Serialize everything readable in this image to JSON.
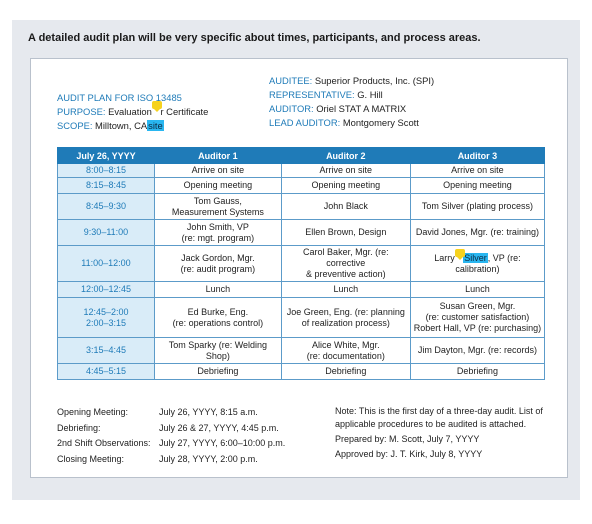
{
  "caption": "A detailed audit plan will be very specific about times, participants, and process areas.",
  "header": {
    "plan_title": "AUDIT PLAN FOR ISO 13485",
    "purpose_label": "PURPOSE: ",
    "purpose_value_a": "Evaluation ",
    "purpose_value_b": "r Certificate",
    "scope_label": "SCOPE: ",
    "scope_value": "Milltown, CA",
    "scope_highlight": "site",
    "auditee_label": "AUDITEE: ",
    "auditee_value": "Superior Products, Inc. (SPI)",
    "representative_label": "REPRESENTATIVE: ",
    "representative_value": "G. Hill",
    "auditor_label": "AUDITOR: ",
    "auditor_value": "Oriel STAT A MATRIX",
    "lead_auditor_label": "LEAD AUDITOR: ",
    "lead_auditor_value": "Montgomery Scott"
  },
  "table": {
    "headers": [
      "July 26, YYYY",
      "Auditor 1",
      "Auditor 2",
      "Auditor 3"
    ],
    "rows": [
      {
        "time": "8:00–8:15",
        "a1": "Arrive on site",
        "a2": "Arrive on site",
        "a3": "Arrive on site"
      },
      {
        "time": "8:15–8:45",
        "a1": "Opening meeting",
        "a2": "Opening meeting",
        "a3": "Opening meeting"
      },
      {
        "time": "8:45–9:30",
        "a1": "Tom Gauss,\nMeasurement Systems",
        "a2": "John Black",
        "a3": "Tom Silver (plating process)"
      },
      {
        "time": "9:30–11:00",
        "a1": "John Smith, VP\n(re: mgt. program)",
        "a2": "Ellen Brown, Design",
        "a3": "David Jones, Mgr. (re: training)"
      },
      {
        "time": "11:00–12:00",
        "a1": "Jack Gordon, Mgr.\n(re: audit program)",
        "a2": "Carol Baker, Mgr. (re: corrective\n& preventive action)",
        "a3_pre": "Larry ",
        "a3_hl": "Silver",
        "a3_post": ", VP (re: calibration)"
      },
      {
        "time": "12:00–12:45",
        "a1": "Lunch",
        "a2": "Lunch",
        "a3": "Lunch"
      },
      {
        "time": "12:45–2:00\n2:00–3:15",
        "a1": "Ed Burke, Eng.\n(re: operations control)",
        "a2": "Joe Green, Eng. (re: planning\nof realization process)",
        "a3": "Susan Green, Mgr.\n(re: customer satisfaction)\nRobert Hall, VP (re: purchasing)"
      },
      {
        "time": "3:15–4:45",
        "a1": "Tom Sparky (re: Welding Shop)",
        "a2": "Alice White, Mgr.\n(re: documentation)",
        "a3": "Jim Dayton, Mgr. (re: records)"
      },
      {
        "time": "4:45–5:15",
        "a1": "Debriefing",
        "a2": "Debriefing",
        "a3": "Debriefing"
      }
    ]
  },
  "footer": {
    "meetings": [
      {
        "k": "Opening Meeting:",
        "v": "July 26, YYYY, 8:15 a.m."
      },
      {
        "k": "Debriefing:",
        "v": "July 26 & 27, YYYY, 4:45 p.m."
      },
      {
        "k": "2nd Shift Observations:",
        "v": "July 27, YYYY, 6:00–10:00 p.m."
      },
      {
        "k": "Closing Meeting:",
        "v": "July 28, YYYY, 2:00 p.m."
      }
    ],
    "note": "Note: This is the first day of a three-day audit. List of applicable procedures to be audited is attached.",
    "prepared": "Prepared by: M. Scott, July 7, YYYY",
    "approved": "Approved by: J. T. Kirk, July 8, YYYY"
  },
  "colors": {
    "accent": "#1f7bb8",
    "time_cell": "#d9ecf8",
    "highlight": "#29b6f0",
    "note_icon": "#f6d21e"
  },
  "icons": {
    "comment": "comment-note-icon"
  }
}
